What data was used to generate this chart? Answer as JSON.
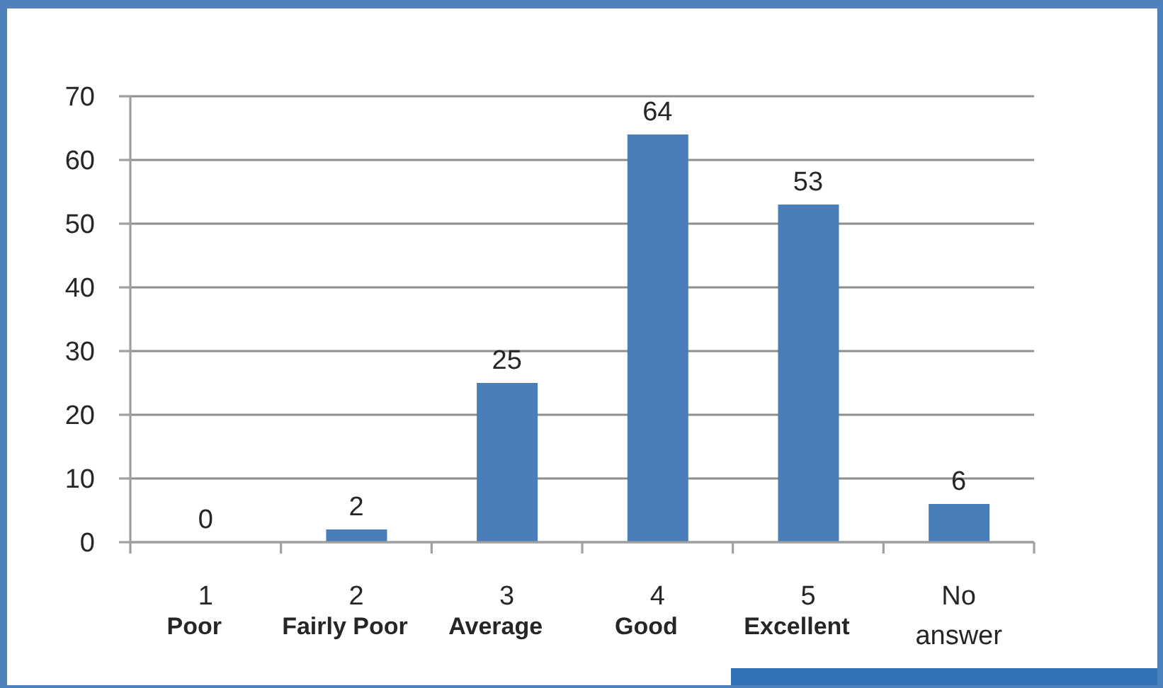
{
  "chart_data": {
    "type": "bar",
    "categories": [
      "1",
      "2",
      "3",
      "4",
      "5",
      "No answer"
    ],
    "values": [
      0,
      2,
      25,
      64,
      53,
      6
    ],
    "color": "#4a7ebb",
    "ylim": [
      0,
      70
    ],
    "yticks": [
      0,
      10,
      20,
      30,
      40,
      50,
      60,
      70
    ],
    "grid": "y",
    "data_labels": true,
    "annotations": [
      "Poor",
      "Fairly Poor",
      "Average",
      "Good",
      "Excellent"
    ]
  }
}
